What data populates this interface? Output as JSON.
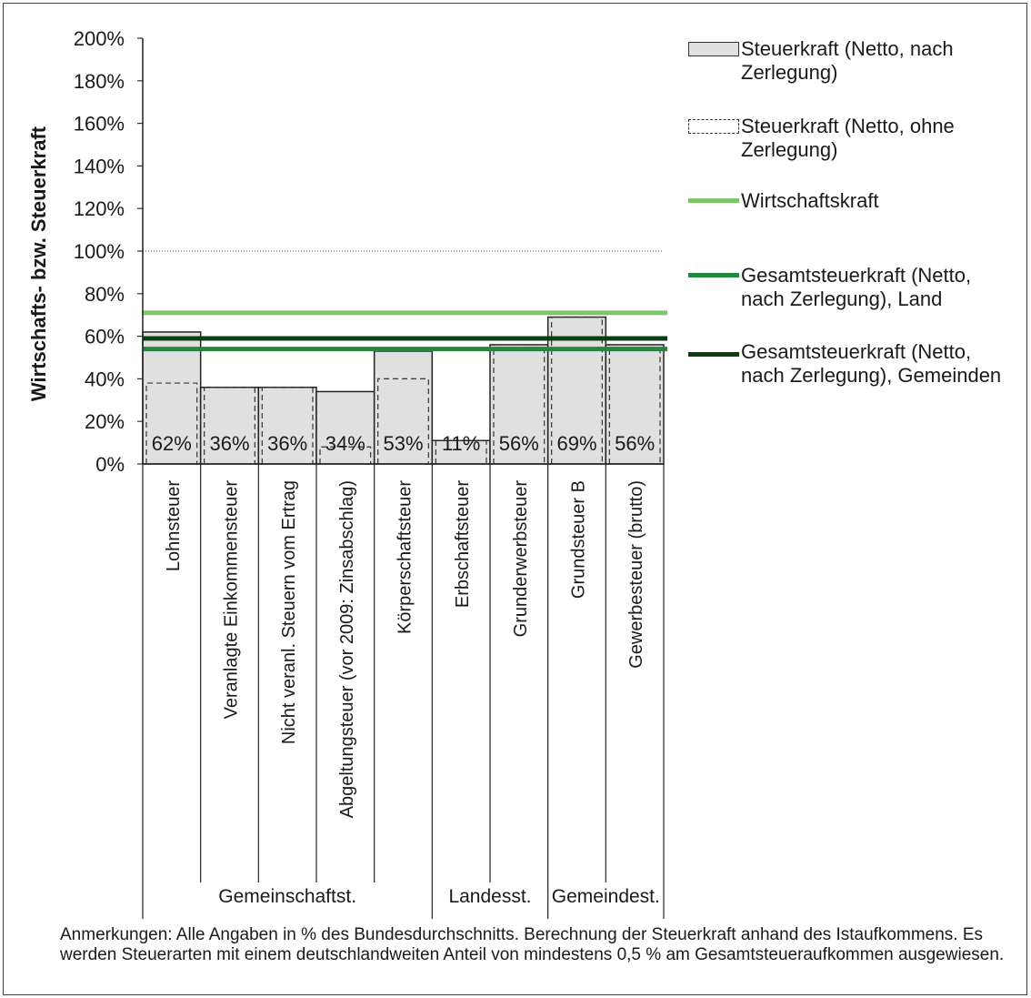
{
  "chart_data": {
    "type": "bar",
    "ylabel": "Wirtschafts- bzw. Steuerkraft",
    "ylim": [
      0,
      200
    ],
    "yticks": [
      "0%",
      "20%",
      "40%",
      "60%",
      "80%",
      "100%",
      "120%",
      "140%",
      "160%",
      "180%",
      "200%"
    ],
    "reference_line": 100,
    "categories": [
      "Lohnsteuer",
      "Veranlagte Einkommensteuer",
      "Nicht veranl. Steuern vom Ertrag",
      "Abgeltungsteuer (vor 2009: Zinsabschlag)",
      "Körperschaftsteuer",
      "Erbschaftsteuer",
      "Grunderwerbsteuer",
      "Grundsteuer B",
      "Gewerbesteuer (brutto)"
    ],
    "groups": [
      {
        "label": "Gemeinschaftst.",
        "span": [
          0,
          4
        ]
      },
      {
        "label": "Landesst.",
        "span": [
          5,
          6
        ]
      },
      {
        "label": "Gemeindest.",
        "span": [
          7,
          8
        ]
      }
    ],
    "series": [
      {
        "name": "Steuerkraft (Netto, nach Zerlegung)",
        "style": "bar",
        "color": "#e0e0e0",
        "values": [
          62,
          36,
          36,
          34,
          53,
          11,
          56,
          69,
          56
        ],
        "labels": [
          "62%",
          "36%",
          "36%",
          "34%",
          "53%",
          "11%",
          "56%",
          "69%",
          "56%"
        ]
      },
      {
        "name": "Steuerkraft (Netto, ohne Zerlegung)",
        "style": "dashed-bar",
        "values": [
          38,
          36,
          36,
          8,
          40,
          11,
          56,
          69,
          56
        ]
      },
      {
        "name": "Wirtschaftskraft",
        "style": "line",
        "color": "#7cc66a",
        "value": 71
      },
      {
        "name": "Gesamtsteuerkraft (Netto, nach Zerlegung), Land",
        "style": "line",
        "color": "#1f8a3a",
        "value": 54
      },
      {
        "name": "Gesamtsteuerkraft (Netto, nach Zerlegung), Gemeinden",
        "style": "line",
        "color": "#0b3d12",
        "value": 59
      }
    ]
  },
  "legend": {
    "items": [
      {
        "text": "Steuerkraft (Netto, nach Zerlegung)"
      },
      {
        "text": "Steuerkraft (Netto, ohne Zerlegung)"
      },
      {
        "text": "Wirtschaftskraft"
      },
      {
        "text": "Gesamtsteuerkraft (Netto, nach Zerlegung), Land"
      },
      {
        "text": "Gesamtsteuerkraft (Netto, nach Zerlegung), Gemeinden"
      }
    ]
  },
  "note": "Anmerkungen: Alle Angaben in % des Bundesdurchschnitts. Berechnung der Steuerkraft anhand des Istaufkommens. Es werden Steuerarten mit einem deutschlandweiten Anteil von mindestens 0,5 % am Gesamtsteueraufkommen ausgewiesen."
}
